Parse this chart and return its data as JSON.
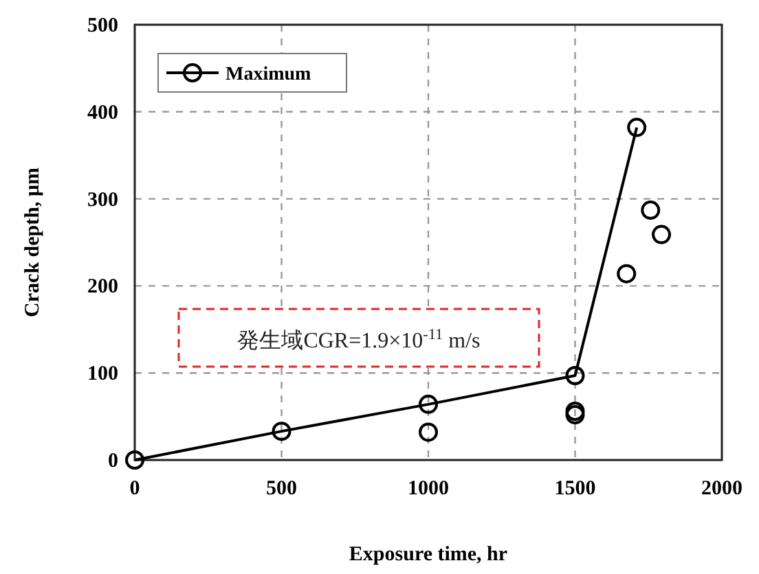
{
  "chart_data": {
    "type": "line",
    "xlabel": "Exposure time, hr",
    "ylabel": "Crack depth, μm",
    "xlim": [
      0,
      2000
    ],
    "ylim": [
      0,
      500
    ],
    "xticks": [
      0,
      500,
      1000,
      1500,
      2000
    ],
    "yticks": [
      0,
      100,
      200,
      300,
      400,
      500
    ],
    "grid": true,
    "legend": "top left",
    "marker": "circle",
    "line_style": "solid",
    "series": [
      {
        "name": "Maximum",
        "color": "#000000",
        "x": [
          0,
          500,
          1000,
          1500,
          1710
        ],
        "values": [
          0,
          33,
          64,
          97,
          382
        ]
      },
      {
        "type": "scatter",
        "color": "#000000",
        "x": [
          1000,
          1500,
          1500,
          1675,
          1757,
          1794
        ],
        "values": [
          32,
          52,
          56,
          214,
          287,
          259
        ]
      }
    ],
    "annotations": [
      "発生域CGR=1.9×10$^{-11}$ m/s"
    ]
  }
}
